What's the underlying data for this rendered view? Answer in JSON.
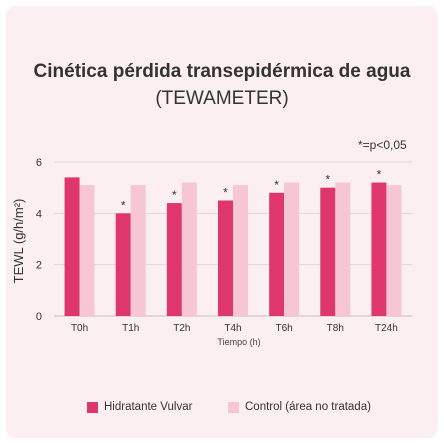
{
  "title": {
    "bold": "Cinética pérdida transepidérmica de agua",
    "light": "(TEWAMETER)"
  },
  "note": "*=p<0,05",
  "colors": {
    "series1": "#e0366e",
    "series2": "#f6c6d3",
    "card": "#fbeff1",
    "grid": "#e9d3d8"
  },
  "chart_data": {
    "type": "bar",
    "title": "Cinética pérdida transepidérmica de agua (TEWAMETER)",
    "xlabel": "Tiempo (h)",
    "ylabel": "TEWL (g/h/m²)",
    "ylim": [
      0,
      6
    ],
    "yticks": [
      0,
      2,
      4,
      6
    ],
    "categories": [
      "T0h",
      "T1h",
      "T2h",
      "T4h",
      "T6h",
      "T8h",
      "T24h"
    ],
    "series": [
      {
        "name": "Hidratante Vulvar",
        "values": [
          5.4,
          4.0,
          4.4,
          4.5,
          4.8,
          5.0,
          5.2
        ],
        "significant": [
          false,
          true,
          true,
          true,
          true,
          true,
          true
        ],
        "marker": "*"
      },
      {
        "name": "Control (área no tratada)",
        "values": [
          5.1,
          5.1,
          5.2,
          5.1,
          5.2,
          5.2,
          5.1
        ]
      }
    ],
    "grid": true,
    "legend": "bottom"
  }
}
